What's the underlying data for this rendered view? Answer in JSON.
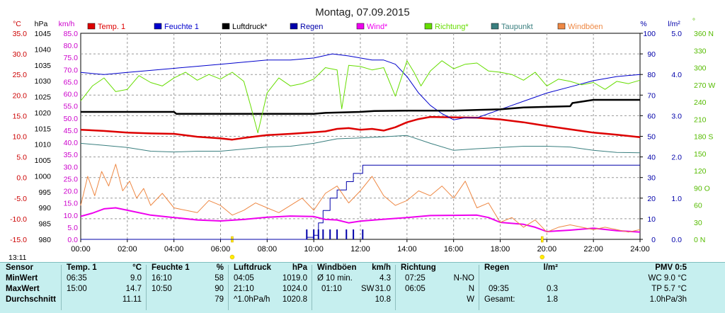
{
  "title": "Montag, 07.09.2015",
  "time_label": "13:11",
  "axes": {
    "temp": {
      "unit": "°C",
      "ticks": [
        "35.0",
        "30.0",
        "25.0",
        "20.0",
        "15.0",
        "10.0",
        "5.0",
        "0.0",
        "-5.0",
        "-10.0",
        "-15.0"
      ],
      "color": "#cc0000"
    },
    "pressure": {
      "unit": "hPa",
      "ticks": [
        "1045",
        "1040",
        "1035",
        "1030",
        "1025",
        "1020",
        "1015",
        "1010",
        "1005",
        "1000",
        "995",
        "990",
        "985",
        "980"
      ],
      "color": "#000000"
    },
    "wind": {
      "unit": "km/h",
      "ticks": [
        "85.0",
        "80.0",
        "75.0",
        "70.0",
        "65.0",
        "60.0",
        "55.0",
        "50.0",
        "45.0",
        "40.0",
        "35.0",
        "30.0",
        "25.0",
        "20.0",
        "15.0",
        "10.0",
        "5.0",
        "0.0"
      ],
      "color": "#cc00cc"
    },
    "humidity": {
      "unit": "%",
      "ticks": [
        "100",
        "90",
        "80",
        "70",
        "60",
        "50",
        "40",
        "30",
        "20",
        "10",
        "0"
      ],
      "color": "#0000aa"
    },
    "rain": {
      "unit": "l/m²",
      "ticks": [
        "5.0",
        "4.0",
        "3.0",
        "2.0",
        "1.0",
        "0.0"
      ],
      "color": "#0000aa"
    },
    "direction": {
      "unit": "°",
      "ticks": [
        "360 N",
        "330",
        "300",
        "270 W",
        "240",
        "210",
        "180 S",
        "150",
        "120",
        "90 O",
        "60",
        "30",
        "0 N"
      ],
      "color": "#55bb00"
    }
  },
  "chart_data": {
    "type": "line",
    "title": "Montag, 07.09.2015",
    "x_ticks": [
      "00:00",
      "02:00",
      "04:00",
      "06:00",
      "08:00",
      "10:00",
      "12:00",
      "14:00",
      "16:00",
      "18:00",
      "20:00",
      "22:00",
      "24:00"
    ],
    "x_range_hours": [
      0,
      24
    ],
    "grid": true,
    "legend_position": "top",
    "series": [
      {
        "name": "Temp. 1",
        "axis": "temp",
        "color": "#dd0000",
        "width": 2.5,
        "x": [
          0,
          1,
          2,
          3,
          4,
          5,
          6,
          6.5,
          7,
          8,
          9,
          10,
          10.5,
          11,
          11.5,
          12,
          12.5,
          13,
          13.5,
          14,
          14.5,
          15,
          16,
          17,
          18,
          19,
          20,
          21,
          22,
          23,
          24
        ],
        "y": [
          11.6,
          11.3,
          10.9,
          10.7,
          10.6,
          9.9,
          9.5,
          9.2,
          9.6,
          10.3,
          10.6,
          11.0,
          11.2,
          11.8,
          12.0,
          11.6,
          11.8,
          11.4,
          12.2,
          13.4,
          14.2,
          14.7,
          14.6,
          14.5,
          14.1,
          13.4,
          12.5,
          11.7,
          10.9,
          10.4,
          9.8
        ]
      },
      {
        "name": "Feuchte 1",
        "axis": "humidity",
        "color": "#0000cc",
        "width": 1,
        "x": [
          0,
          1,
          2,
          3,
          4,
          5,
          6,
          7,
          8,
          9,
          10,
          10.8,
          11.5,
          12,
          12.5,
          13,
          13.5,
          14,
          14.5,
          15,
          15.5,
          16,
          16.5,
          17,
          17.5,
          18,
          18.5,
          19,
          20,
          21,
          22,
          23,
          24
        ],
        "y": [
          81,
          80,
          81,
          82,
          83,
          84,
          85,
          86,
          87,
          87,
          88,
          90,
          89,
          88,
          87,
          87,
          85,
          79,
          71,
          65,
          61,
          58,
          59,
          59,
          61,
          63,
          65,
          67,
          71,
          74,
          77,
          79,
          80
        ]
      },
      {
        "name": "Luftdruck*",
        "axis": "pressure",
        "color": "#000000",
        "width": 2.5,
        "x": [
          0,
          2,
          4,
          4.1,
          6,
          8,
          10,
          10.5,
          12,
          12.6,
          14,
          16,
          17,
          18,
          19,
          20,
          21,
          21.1,
          22,
          23,
          24
        ],
        "y": [
          1020.2,
          1020.2,
          1020.2,
          1019.6,
          1019.6,
          1019.6,
          1019.6,
          1019.9,
          1020.2,
          1020.5,
          1020.6,
          1020.6,
          1020.8,
          1021.0,
          1021.6,
          1021.8,
          1022.0,
          1023.0,
          1024.0,
          1024.0,
          1024.0
        ]
      },
      {
        "name": "Regen",
        "axis": "rain",
        "color": "#0000aa",
        "width": 1,
        "x": [
          0,
          9.6,
          9.7,
          10.0,
          10.2,
          10.4,
          10.7,
          11.0,
          11.4,
          11.7,
          12.0,
          12.1,
          24
        ],
        "y": [
          0,
          0,
          0.05,
          0.1,
          0.4,
          0.7,
          1.0,
          1.2,
          1.4,
          1.6,
          1.6,
          1.8,
          1.8
        ]
      },
      {
        "name": "Wind*",
        "axis": "wind",
        "color": "#ee00ee",
        "width": 2,
        "x": [
          0,
          0.5,
          1,
          1.5,
          2,
          3,
          4,
          5,
          6,
          7,
          8,
          9,
          10,
          10.5,
          11,
          11.5,
          12,
          13,
          14,
          15,
          16,
          17,
          17.5,
          18,
          19,
          19.5,
          20,
          21,
          22,
          23,
          24
        ],
        "y": [
          9.5,
          10.8,
          12.6,
          13.0,
          12.0,
          10.0,
          9.0,
          8.0,
          7.6,
          8.2,
          9.1,
          9.6,
          9.4,
          8.2,
          8.0,
          6.8,
          7.5,
          8.3,
          9.0,
          9.8,
          9.9,
          10.0,
          9.0,
          7.0,
          6.2,
          5.0,
          3.2,
          3.8,
          4.6,
          3.6,
          3.0
        ]
      },
      {
        "name": "Richtung*",
        "axis": "direction",
        "color": "#66dd00",
        "width": 1,
        "x": [
          0,
          0.5,
          1,
          1.5,
          2,
          2.5,
          3,
          3.5,
          4,
          4.5,
          5,
          5.5,
          6,
          6.5,
          7,
          7.3,
          7.6,
          8,
          8.5,
          9,
          9.5,
          10,
          10.5,
          11,
          11.2,
          11.5,
          12,
          12.5,
          13,
          13.5,
          14,
          14.3,
          14.6,
          15,
          15.5,
          16,
          16.5,
          17,
          17.5,
          18,
          18.5,
          19,
          19.5,
          20,
          20.5,
          21,
          21.5,
          22,
          22.5,
          23,
          23.5,
          24
        ],
        "y": [
          242,
          268,
          282,
          258,
          262,
          286,
          274,
          268,
          282,
          292,
          278,
          288,
          280,
          292,
          276,
          232,
          186,
          256,
          282,
          268,
          272,
          280,
          300,
          296,
          228,
          304,
          302,
          296,
          300,
          250,
          312,
          292,
          268,
          294,
          312,
          298,
          306,
          308,
          294,
          292,
          288,
          278,
          292,
          268,
          280,
          276,
          270,
          274,
          262,
          276,
          272,
          278
        ]
      },
      {
        "name": "Taupunkt",
        "axis": "temp",
        "color": "#3a7f7f",
        "width": 1,
        "x": [
          0,
          1,
          2,
          3,
          4,
          5,
          6,
          7,
          8,
          9,
          10,
          11,
          12,
          13,
          14,
          15,
          16,
          17,
          18,
          19,
          20,
          21,
          22,
          23,
          24
        ],
        "y": [
          8.3,
          7.8,
          7.3,
          6.4,
          6.2,
          6.4,
          6.4,
          6.9,
          7.4,
          7.6,
          8.3,
          9.4,
          9.6,
          9.9,
          10.2,
          8.3,
          6.6,
          7.0,
          7.3,
          7.6,
          7.6,
          7.4,
          6.6,
          6.1,
          6.0
        ]
      },
      {
        "name": "Windböen",
        "axis": "wind",
        "color": "#ee8844",
        "width": 1,
        "x": [
          0,
          0.3,
          0.6,
          0.9,
          1.2,
          1.5,
          1.8,
          2.1,
          2.4,
          2.7,
          3.0,
          3.5,
          4,
          4.5,
          5,
          5.5,
          6,
          6.5,
          7,
          7.5,
          8,
          8.5,
          9,
          9.5,
          10,
          10.5,
          11,
          11.5,
          12,
          12.5,
          13,
          13.5,
          14,
          14.5,
          15,
          15.5,
          16,
          16.5,
          17,
          17.5,
          18,
          18.5,
          19,
          19.5,
          20,
          20.5,
          21,
          21.5,
          22,
          22.5,
          23,
          23.5,
          24
        ],
        "y": [
          14,
          26,
          18,
          28,
          22,
          31,
          20,
          24,
          17,
          21,
          14,
          19,
          13,
          12,
          11,
          16,
          14,
          10,
          12,
          15,
          13,
          11,
          14,
          17,
          12,
          19,
          22,
          15,
          20,
          26,
          18,
          14,
          16,
          20,
          18,
          22,
          17,
          24,
          13,
          15,
          7,
          9,
          5,
          8,
          3,
          5,
          6,
          5,
          4,
          5,
          4,
          3,
          4
        ]
      }
    ]
  },
  "stats": {
    "headers": {
      "sensor": "Sensor",
      "temp": "Temp. 1",
      "temp_unit": "°C",
      "feuchte": "Feuchte 1",
      "feuchte_unit": "%",
      "luftdruck": "Luftdruck",
      "luftdruck_unit": "hPa",
      "windboeen": "Windböen",
      "windboeen_unit": "km/h",
      "richtung": "Richtung",
      "regen": "Regen",
      "regen_unit": "l/m²",
      "pmv": "PMV 0:5"
    },
    "rows": {
      "min": "MinWert",
      "max": "MaxWert",
      "avg": "Durchschnitt"
    },
    "temp": {
      "min_time": "06:35",
      "min_val": "9.0",
      "max_time": "15:00",
      "max_val": "14.7",
      "avg_val": "11.11"
    },
    "feuchte": {
      "min_time": "16:10",
      "min_val": "58",
      "max_time": "10:50",
      "max_val": "90",
      "avg_val": "79"
    },
    "luftdruck": {
      "min_time": "04:05",
      "min_val": "1019.0",
      "max_time": "21:10",
      "max_val": "1024.0",
      "avg_label": "^1.0hPa/h",
      "avg_val": "1020.8"
    },
    "windboeen": {
      "min_label": "Ø 10 min.",
      "min_val": "4.3",
      "max_time": "01:10",
      "max_dir": "SW",
      "max_val": "31.0",
      "avg_val": "10.8"
    },
    "richtung": {
      "min_time": "07:25",
      "min_val": "N-NO",
      "max_time": "06:05",
      "max_val": "N",
      "avg_val": "W"
    },
    "regen": {
      "max_time": "09:35",
      "max_val": "0.3",
      "total_label": "Gesamt:",
      "total_val": "1.8"
    },
    "pmv": {
      "wc": "WC 9.0 °C",
      "tp": "TP 5.7 °C",
      "rate": "1.0hPa/3h"
    }
  }
}
